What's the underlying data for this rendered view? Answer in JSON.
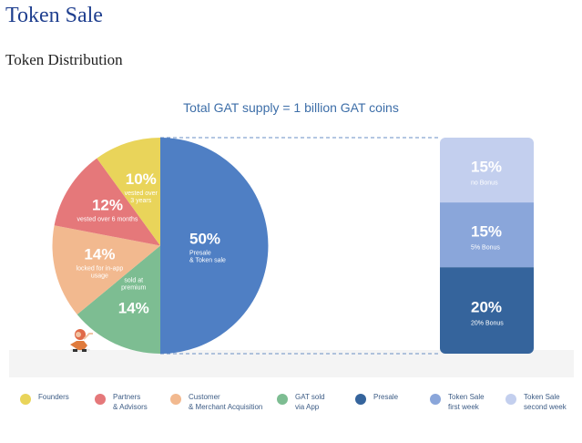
{
  "page": {
    "title": "Token Sale",
    "section_title": "Token Distribution"
  },
  "chart_data": {
    "type": "pie",
    "title": "Total GAT supply = 1 billion GAT coins",
    "slices": [
      {
        "name": "Presale & Token sale",
        "value": 50,
        "label": "50%",
        "sublabel": "Presale\n& Token sale",
        "color": "#4f7fc4"
      },
      {
        "name": "GAT sold via App",
        "value": 14,
        "label": "14%",
        "sublabel": "sold at\npremium",
        "color": "#7dbd92"
      },
      {
        "name": "Customer & Merchant Acquisition",
        "value": 14,
        "label": "14%",
        "sublabel": "locked for in-app\nusage",
        "color": "#f2b98f"
      },
      {
        "name": "Partners & Advisors",
        "value": 12,
        "label": "12%",
        "sublabel": "vested over 6 months",
        "color": "#e5787a"
      },
      {
        "name": "Founders",
        "value": 10,
        "label": "10%",
        "sublabel": "vested over\n3 years",
        "color": "#e9d45a"
      }
    ],
    "presale_breakdown": [
      {
        "value": 15,
        "label": "15%",
        "sublabel": "no Bonus",
        "color": "#c3cfee"
      },
      {
        "value": 15,
        "label": "15%",
        "sublabel": "5% Bonus",
        "color": "#8aa6da"
      },
      {
        "value": 20,
        "label": "20%",
        "sublabel": "20% Bonus",
        "color": "#35649c"
      }
    ],
    "legend": [
      {
        "label": "Founders",
        "color": "#e9d45a"
      },
      {
        "label": "Partners\n& Advisors",
        "color": "#e5787a"
      },
      {
        "label": "Customer\n& Merchant Acquisition",
        "color": "#f2b98f"
      },
      {
        "label": "GAT sold\nvia App",
        "color": "#7dbd92"
      },
      {
        "label": "Presale",
        "color": "#35649c"
      },
      {
        "label": "Token Sale\nfirst week",
        "color": "#8aa6da"
      },
      {
        "label": "Token Sale\nsecond week",
        "color": "#c3cfee"
      }
    ]
  }
}
